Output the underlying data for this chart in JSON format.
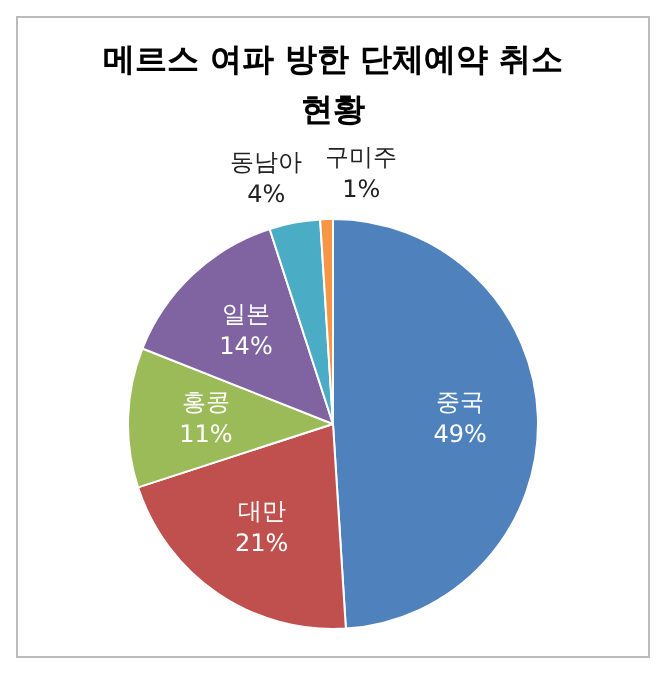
{
  "chart_data": {
    "type": "pie",
    "title": "메르스 여파 방한 단체예약 취소 현황",
    "categories": [
      "중국",
      "대만",
      "홍콩",
      "일본",
      "동남아",
      "구미주"
    ],
    "values": [
      49,
      21,
      11,
      14,
      4,
      1
    ],
    "colors": [
      "#4f81bd",
      "#c0504d",
      "#9bbb59",
      "#8064a2",
      "#4bacc6",
      "#f79646"
    ],
    "value_labels": [
      "49%",
      "21%",
      "11%",
      "14%",
      "4%",
      "1%"
    ],
    "legend": false
  }
}
